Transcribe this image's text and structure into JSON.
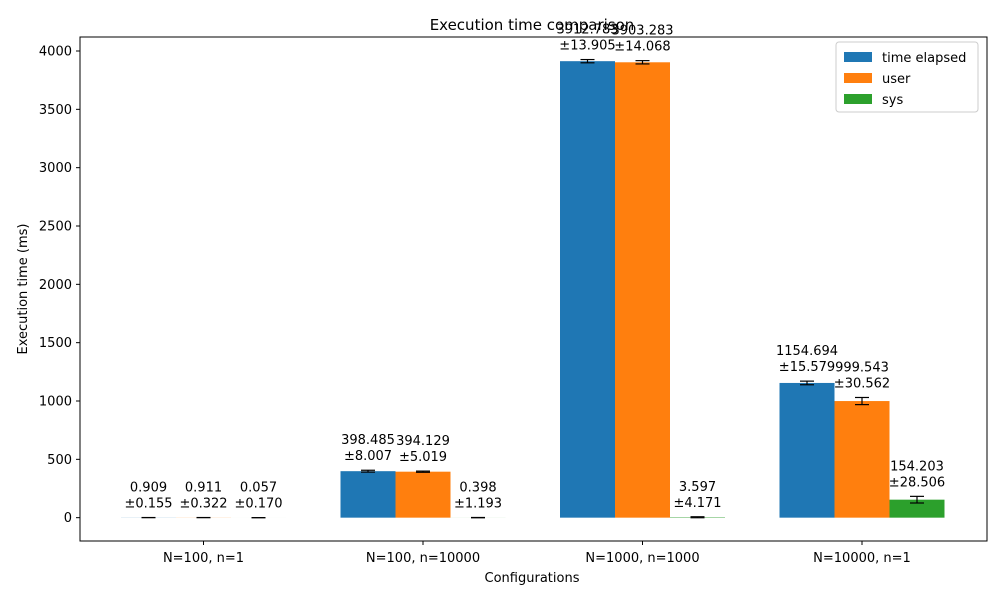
{
  "chart_data": {
    "type": "bar",
    "title": "Execution time comparison",
    "xlabel": "Configurations",
    "ylabel": "Execution time (ms)",
    "categories": [
      "N=100, n=1",
      "N=100, n=10000",
      "N=1000, n=1000",
      "N=10000, n=1"
    ],
    "ylim": [
      -200,
      4120
    ],
    "yticks": [
      0,
      500,
      1000,
      1500,
      2000,
      2500,
      3000,
      3500,
      4000
    ],
    "legend_position": "top-right",
    "grid": false,
    "series": [
      {
        "name": "time elapsed",
        "color": "#1f77b4",
        "values": [
          0.909,
          398.485,
          3912.783,
          1154.694
        ],
        "errors": [
          0.155,
          8.007,
          13.905,
          15.579
        ],
        "value_labels": [
          "0.909",
          "398.485",
          "3912.783",
          "1154.694"
        ],
        "error_labels": [
          "±0.155",
          "±8.007",
          "±13.905",
          "±15.579"
        ]
      },
      {
        "name": "user",
        "color": "#ff7f0e",
        "values": [
          0.911,
          394.129,
          3903.283,
          999.543
        ],
        "errors": [
          0.322,
          5.019,
          14.068,
          30.562
        ],
        "value_labels": [
          "0.911",
          "394.129",
          "3903.283",
          "999.543"
        ],
        "error_labels": [
          "±0.322",
          "±5.019",
          "±14.068",
          "±30.562"
        ]
      },
      {
        "name": "sys",
        "color": "#2ca02c",
        "values": [
          0.057,
          0.398,
          3.597,
          154.203
        ],
        "errors": [
          0.17,
          1.193,
          4.171,
          28.506
        ],
        "value_labels": [
          "0.057",
          "0.398",
          "3.597",
          "154.203"
        ],
        "error_labels": [
          "±0.170",
          "±1.193",
          "±4.171",
          "±28.506"
        ]
      }
    ]
  }
}
